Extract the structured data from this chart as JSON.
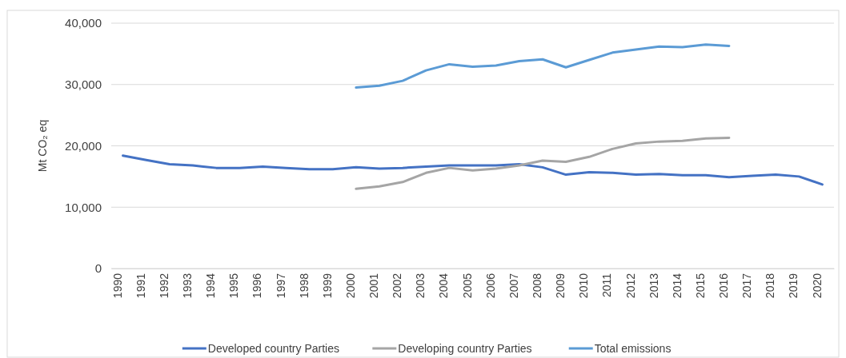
{
  "chart_data": {
    "type": "line",
    "ylabel": "Mt CO₂ eq",
    "categories": [
      "1990",
      "1991",
      "1992",
      "1993",
      "1994",
      "1995",
      "1996",
      "1997",
      "1998",
      "1999",
      "2000",
      "2001",
      "2002",
      "2003",
      "2004",
      "2005",
      "2006",
      "2007",
      "2008",
      "2009",
      "2010",
      "2011",
      "2012",
      "2013",
      "2014",
      "2015",
      "2016",
      "2017",
      "2018",
      "2019",
      "2020"
    ],
    "series": [
      {
        "name": "Developed country Parties",
        "color": "#4472c4",
        "values": [
          18400,
          17700,
          17000,
          16800,
          16400,
          16400,
          16600,
          16400,
          16200,
          16200,
          16500,
          16300,
          16400,
          16600,
          16800,
          16800,
          16800,
          17000,
          16500,
          15300,
          15700,
          15600,
          15300,
          15400,
          15200,
          15200,
          14900,
          15100,
          15300,
          15000,
          13700
        ]
      },
      {
        "name": "Developing country Parties",
        "color": "#a5a5a5",
        "values": [
          null,
          null,
          null,
          null,
          null,
          null,
          null,
          null,
          null,
          null,
          13000,
          13400,
          14100,
          15600,
          16400,
          16000,
          16300,
          16800,
          17600,
          17400,
          18200,
          19500,
          20400,
          20700,
          20800,
          21200,
          21300,
          null,
          null,
          null,
          null
        ]
      },
      {
        "name": "Total emissions",
        "color": "#5b9bd5",
        "values": [
          null,
          null,
          null,
          null,
          null,
          null,
          null,
          null,
          null,
          null,
          29500,
          29800,
          30600,
          32300,
          33300,
          32900,
          33100,
          33800,
          34100,
          32800,
          34000,
          35200,
          35700,
          36200,
          36100,
          36500,
          36300,
          null,
          null,
          null,
          null
        ]
      }
    ],
    "ylim": [
      0,
      40000
    ],
    "yticks": [
      {
        "value": 0,
        "label": "0"
      },
      {
        "value": 10000,
        "label": "10,000"
      },
      {
        "value": 20000,
        "label": "20,000"
      },
      {
        "value": 30000,
        "label": "30,000"
      },
      {
        "value": 40000,
        "label": "40,000"
      }
    ],
    "grid": "y",
    "legend": "bottom",
    "line_style": "solid"
  }
}
